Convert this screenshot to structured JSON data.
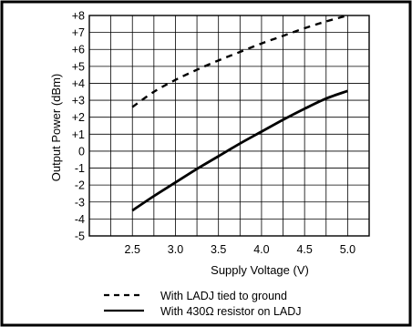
{
  "chart_data": {
    "type": "line",
    "title": "",
    "xlabel": "Supply Voltage (V)",
    "ylabel": "Output Power (dBm)",
    "xlim": [
      2.0,
      5.25
    ],
    "ylim": [
      -5,
      8
    ],
    "x_ticks": [
      2.5,
      3.0,
      3.5,
      4.0,
      4.5,
      5.0
    ],
    "x_tick_labels": [
      "2.5",
      "3.0",
      "3.5",
      "4.0",
      "4.5",
      "5.0"
    ],
    "y_ticks": [
      -5,
      -4,
      -3,
      -2,
      -1,
      0,
      1,
      2,
      3,
      4,
      5,
      6,
      7,
      8
    ],
    "y_tick_labels": [
      "-5",
      "-4",
      "-3",
      "-2",
      "-1",
      "0",
      "+1",
      "+2",
      "+3",
      "+4",
      "+5",
      "+6",
      "+7",
      "+8"
    ],
    "x_minor_step": 0.25,
    "grid": true,
    "legend_position": "bottom",
    "series": [
      {
        "name": "With LADJ tied to ground",
        "style": "dashed",
        "x": [
          2.5,
          2.75,
          3.0,
          3.25,
          3.5,
          3.75,
          4.0,
          4.25,
          4.5,
          4.75,
          5.0
        ],
        "y": [
          2.6,
          3.5,
          4.2,
          4.8,
          5.35,
          5.85,
          6.35,
          6.8,
          7.25,
          7.65,
          8.0
        ]
      },
      {
        "name": "With 430Ω  resistor on LADJ",
        "style": "solid",
        "x": [
          2.5,
          2.75,
          3.0,
          3.25,
          3.5,
          3.75,
          4.0,
          4.25,
          4.5,
          4.75,
          5.0
        ],
        "y": [
          -3.5,
          -2.65,
          -1.85,
          -1.05,
          -0.3,
          0.45,
          1.15,
          1.85,
          2.5,
          3.1,
          3.55
        ]
      }
    ]
  }
}
